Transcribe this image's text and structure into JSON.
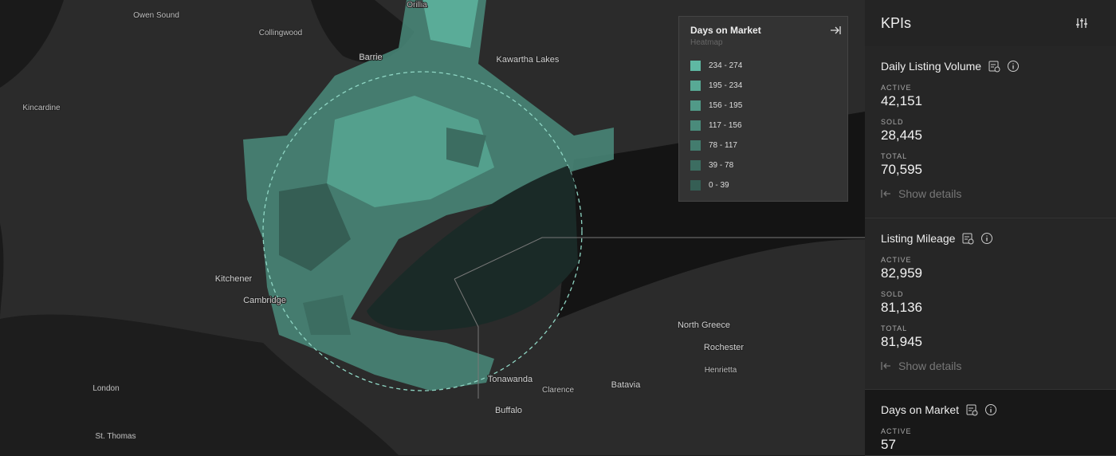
{
  "map": {
    "places": [
      "Owen Sound",
      "Collingwood",
      "Orillia",
      "Barrie",
      "Kawartha Lakes",
      "Kincardine",
      "Kitchener",
      "Cambridge",
      "London",
      "St. Thomas",
      "Tonawanda",
      "Clarence",
      "Buffalo",
      "Batavia",
      "North Greece",
      "Rochester",
      "Henrietta"
    ]
  },
  "legend": {
    "title": "Days on Market",
    "subtitle": "Heatmap",
    "items": [
      {
        "label": "234 - 274",
        "color": "#5fb8a3"
      },
      {
        "label": "195 - 234",
        "color": "#58a995"
      },
      {
        "label": "156 - 195",
        "color": "#519a88"
      },
      {
        "label": "117 - 156",
        "color": "#4a8b7b"
      },
      {
        "label": "78 - 117",
        "color": "#437c6e"
      },
      {
        "label": "39 - 78",
        "color": "#3c6d61"
      },
      {
        "label": "0 - 39",
        "color": "#355e54"
      }
    ]
  },
  "panel": {
    "title": "KPIs",
    "sections": [
      {
        "title": "Daily Listing Volume",
        "metrics": [
          {
            "label": "ACTIVE",
            "value": "42,151"
          },
          {
            "label": "SOLD",
            "value": "28,445"
          },
          {
            "label": "TOTAL",
            "value": "70,595"
          }
        ],
        "action": "Show details"
      },
      {
        "title": "Listing Mileage",
        "metrics": [
          {
            "label": "ACTIVE",
            "value": "82,959"
          },
          {
            "label": "SOLD",
            "value": "81,136"
          },
          {
            "label": "TOTAL",
            "value": "81,945"
          }
        ],
        "action": "Show details"
      },
      {
        "title": "Days on Market",
        "metrics": [
          {
            "label": "ACTIVE",
            "value": "57"
          }
        ]
      }
    ]
  }
}
